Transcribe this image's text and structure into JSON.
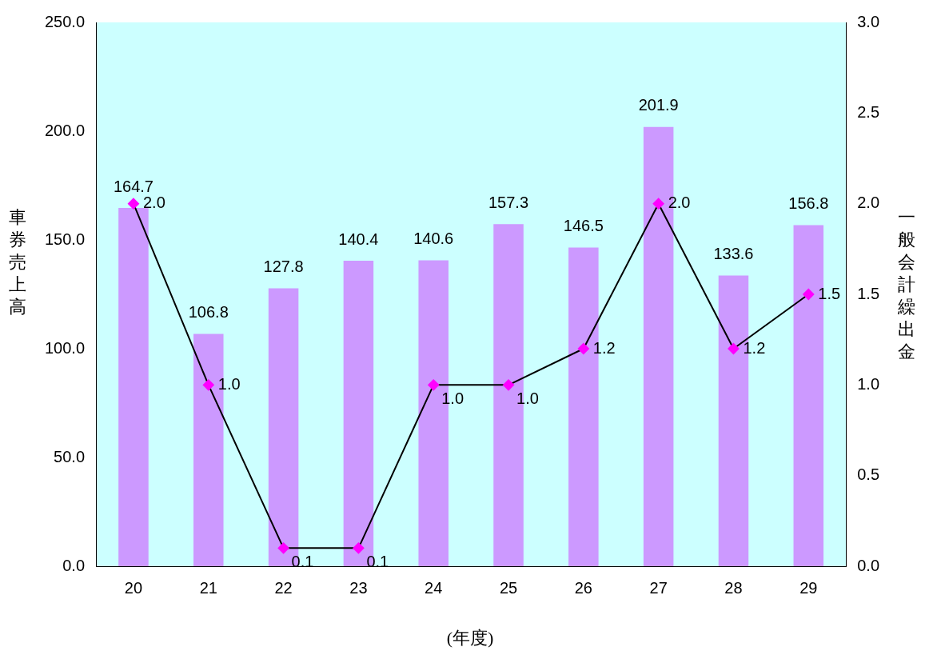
{
  "chart_data": {
    "type": "bar",
    "xlabel": "(年度)",
    "ylabel": "車券売上高",
    "y2label": "一般会計繰出金",
    "categories": [
      "20",
      "21",
      "22",
      "23",
      "24",
      "25",
      "26",
      "27",
      "28",
      "29"
    ],
    "series": [
      {
        "color": "#cc99ff",
        "values": [
          164.7,
          106.8,
          127.8,
          140.4,
          140.6,
          157.3,
          146.5,
          201.9,
          133.6,
          156.8
        ]
      },
      {
        "type": "line",
        "axis": "y2",
        "color": "#ff00ff",
        "marker": "diamond",
        "values": [
          2.0,
          1.0,
          0.1,
          0.1,
          1.0,
          1.0,
          1.2,
          2.0,
          1.2,
          1.5
        ],
        "value_labels": [
          "2.0",
          "1.0",
          "0.1",
          "0.1",
          "1.0",
          "1.0",
          "1.2",
          "2.0",
          "1.2",
          "1.5"
        ]
      }
    ],
    "ylim": [
      0,
      250
    ],
    "yticks": [
      {
        "value": 0,
        "label": "0.0"
      },
      {
        "value": 50,
        "label": "50.0"
      },
      {
        "value": 100,
        "label": "100.0"
      },
      {
        "value": 150,
        "label": "150.0"
      },
      {
        "value": 200,
        "label": "200.0"
      },
      {
        "value": 250,
        "label": "250.0"
      }
    ],
    "y2lim": [
      0,
      3
    ],
    "y2ticks": [
      {
        "value": 0,
        "label": "0.0"
      },
      {
        "value": 0.5,
        "label": "0.5"
      },
      {
        "value": 1,
        "label": "1.0"
      },
      {
        "value": 1.5,
        "label": "1.5"
      },
      {
        "value": 2,
        "label": "2.0"
      },
      {
        "value": 2.5,
        "label": "2.5"
      },
      {
        "value": 3,
        "label": "3.0"
      }
    ],
    "grid": false,
    "legend": false,
    "data_labels": true
  }
}
